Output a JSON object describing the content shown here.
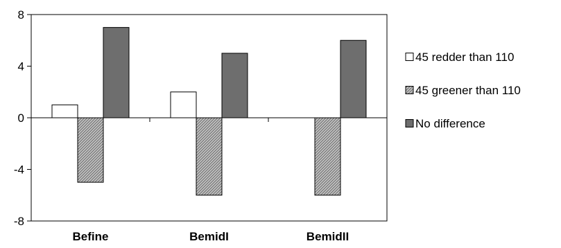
{
  "chart_data": {
    "type": "bar",
    "categories": [
      "Befine",
      "BemidI",
      "BemidII"
    ],
    "series": [
      {
        "name": "45 redder than 110",
        "values": [
          1,
          2,
          0
        ],
        "fill": "#ffffff",
        "pattern": "none"
      },
      {
        "name": "45 greener than 110",
        "values": [
          -5,
          -6,
          -6
        ],
        "fill": "#b8b8b8",
        "pattern": "hatch"
      },
      {
        "name": "No difference",
        "values": [
          7,
          5,
          6
        ],
        "fill": "#6e6e6e",
        "pattern": "none"
      }
    ],
    "title": "",
    "xlabel": "",
    "ylabel": "",
    "ylim": [
      -8,
      8
    ],
    "yticks": [
      8,
      4,
      0,
      -4,
      -8
    ],
    "ytick_labels": [
      "8",
      "4",
      "0",
      "-4",
      "-8"
    ],
    "grid": false,
    "legend_position": "right"
  }
}
